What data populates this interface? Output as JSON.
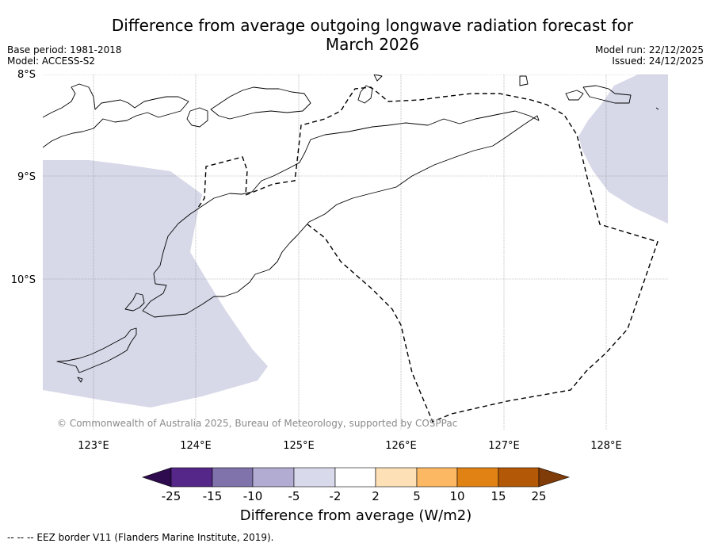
{
  "header": {
    "title_line1": "Difference from average outgoing longwave radiation forecast for",
    "title_line2": "March 2026",
    "base_period": "Base period: 1981-2018",
    "model": "Model: ACCESS-S2",
    "model_run": "Model run: 22/12/2025",
    "issued": "Issued: 24/12/2025"
  },
  "map": {
    "lat_labels": [
      "8°S",
      "9°S",
      "10°S"
    ],
    "lon_labels": [
      "123°E",
      "124°E",
      "125°E",
      "126°E",
      "127°E",
      "128°E"
    ],
    "copyright": "© Commonwealth of Australia 2025, Bureau of Meteorology, supported by COSPPac",
    "anomaly_fill_color": "#d7d8e8",
    "coast_color": "#000000"
  },
  "colorbar": {
    "title": "Difference from average (W/m2)",
    "tick_labels": [
      "-25",
      "-15",
      "-10",
      "-5",
      "-2",
      "2",
      "5",
      "10",
      "15",
      "25"
    ],
    "colors": [
      "#2e0a4e",
      "#542788",
      "#8073ac",
      "#b2abd2",
      "#d8daeb",
      "#ffffff",
      "#fee0b6",
      "#fdb863",
      "#e08214",
      "#b35806",
      "#7f3b08"
    ]
  },
  "legend": {
    "eez_text": "--  --  -- EEZ border V11 (Flanders Marine Institute, 2019)."
  }
}
